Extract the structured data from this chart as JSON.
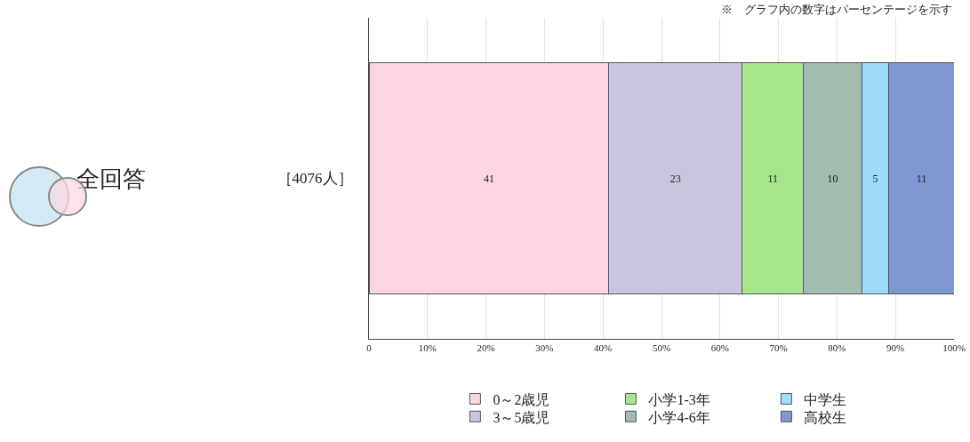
{
  "chart_data": {
    "type": "bar",
    "orientation": "horizontal",
    "stacked": true,
    "categories": [
      "［4076人］"
    ],
    "series": [
      {
        "name": "0～2歳児",
        "color": "#fcd5e3",
        "values": [
          41
        ],
        "value_labels": [
          "41"
        ]
      },
      {
        "name": "3～5歳児",
        "color": "#c8c6de",
        "values": [
          22.8
        ],
        "value_labels": [
          "23"
        ]
      },
      {
        "name": "小学1-3年",
        "color": "#a8e68a",
        "values": [
          10.5
        ],
        "value_labels": [
          "11"
        ]
      },
      {
        "name": "小学4-6年",
        "color": "#a2bcb0",
        "values": [
          9.9
        ],
        "value_labels": [
          "10"
        ]
      },
      {
        "name": "中学生",
        "color": "#9ddcfb",
        "values": [
          4.7
        ],
        "value_labels": [
          "5"
        ]
      },
      {
        "name": "高校生",
        "color": "#8096d2",
        "values": [
          11.1
        ],
        "value_labels": [
          "11"
        ]
      }
    ],
    "xlim": [
      0,
      100
    ],
    "xticks": [
      0,
      {
        "value": 10,
        "label": "10%"
      },
      {
        "value": 20,
        "label": "20%"
      },
      {
        "value": 30,
        "label": "30%"
      },
      {
        "value": 40,
        "label": "40%"
      },
      {
        "value": 50,
        "label": "50%"
      },
      {
        "value": 60,
        "label": "60%"
      },
      {
        "value": 70,
        "label": "70%"
      },
      {
        "value": 80,
        "label": "80%"
      },
      {
        "value": 90,
        "label": "90%"
      },
      {
        "value": 100,
        "label": "100%"
      }
    ],
    "grid": "x",
    "legend": "bottom",
    "annotations": [
      "※　グラフ内の数字はパーセンテージを示す",
      "全回答"
    ]
  }
}
